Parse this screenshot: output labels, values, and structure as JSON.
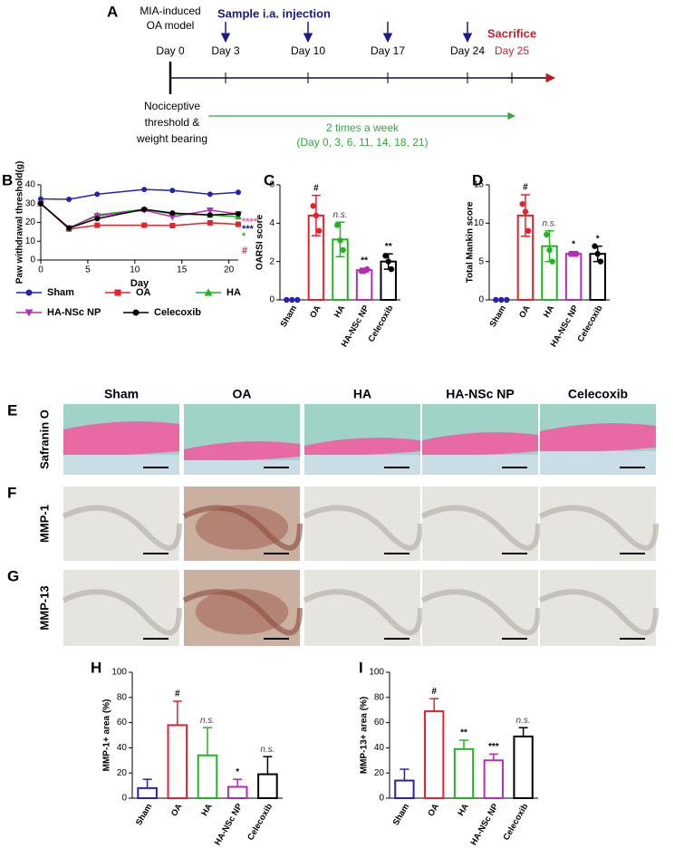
{
  "timeline": {
    "panel": "A",
    "model": [
      "MIA-induced",
      "OA model"
    ],
    "injection": "Sample i.a. injection",
    "days": [
      "Day 0",
      "Day 3",
      "Day 10",
      "Day 17",
      "Day 24"
    ],
    "sacrifice": "Sacrifice",
    "sacrifice_day": "Day 25",
    "measure": [
      "Nociceptive",
      "threshold &",
      "weight bearing"
    ],
    "frequency": "2 times a week",
    "schedule": "(Day 0, 3, 6, 11, 14, 18, 21)"
  },
  "chart_data": [
    {
      "type": "line",
      "panel": "B",
      "x_label": "Day",
      "y_label": "Paw withdrawal threshold(g)",
      "x": [
        0,
        3,
        6,
        11,
        14,
        18,
        21
      ],
      "xlim": [
        0,
        21
      ],
      "xticks": [
        0,
        5,
        10,
        15,
        20
      ],
      "ylim": [
        0,
        40
      ],
      "yticks": [
        0,
        10,
        20,
        30,
        40
      ],
      "series": [
        {
          "name": "Sham",
          "color": "#2424b0",
          "marker": "circle",
          "values": [
            32.5,
            32.3,
            35,
            37.5,
            37,
            35,
            36
          ]
        },
        {
          "name": "OA",
          "color": "#e8202a",
          "marker": "square",
          "values": [
            30,
            16.5,
            18.5,
            18.5,
            18.3,
            19.8,
            19
          ]
        },
        {
          "name": "HA",
          "color": "#22b422",
          "marker": "triangle-up",
          "values": [
            30,
            17,
            24,
            27,
            24.5,
            24,
            23
          ]
        },
        {
          "name": "HA-NSc NP",
          "color": "#b42db4",
          "marker": "triangle-down",
          "values": [
            30,
            17,
            23.5,
            26.5,
            23,
            26.5,
            24.5
          ]
        },
        {
          "name": "Celecoxib",
          "color": "#000000",
          "marker": "circle",
          "values": [
            30,
            17,
            22,
            27,
            25,
            24,
            24.5
          ]
        }
      ],
      "annotations": [
        "****",
        "***",
        "*",
        "#"
      ],
      "annotation_colors": [
        "#e0609a",
        "#1a1a66",
        "#22b422",
        "#e8202a"
      ]
    },
    {
      "type": "bar",
      "panel": "C",
      "y_label": "OARSI score",
      "categories": [
        "Sham",
        "OA",
        "HA",
        "HA-NSc NP",
        "Celecoxib"
      ],
      "colors": [
        "#2424b0",
        "#e8202a",
        "#22b422",
        "#b42db4",
        "#000000"
      ],
      "values": [
        0,
        4.4,
        3.15,
        1.55,
        2.0
      ],
      "errors": [
        0,
        1.05,
        0.9,
        0.1,
        0.4
      ],
      "error_bars": "both",
      "points": [
        [
          0,
          0,
          0
        ],
        [
          4.9,
          4.4,
          3.6
        ],
        [
          3.9,
          3.1,
          2.6
        ],
        [
          1.5,
          1.5,
          1.6
        ],
        [
          2.3,
          2.0,
          1.6
        ]
      ],
      "annotations": [
        null,
        "#",
        "n.s.",
        "**",
        "**"
      ],
      "ylim": [
        0,
        6
      ],
      "yticks": [
        0,
        2,
        4,
        6
      ]
    },
    {
      "type": "bar",
      "panel": "D",
      "y_label": "Total Mankin score",
      "categories": [
        "Sham",
        "OA",
        "HA",
        "HA-NSc NP",
        "Celecoxib"
      ],
      "colors": [
        "#2424b0",
        "#e8202a",
        "#22b422",
        "#b42db4",
        "#000000"
      ],
      "values": [
        0,
        11,
        7,
        6,
        6
      ],
      "errors": [
        0,
        2.7,
        2,
        0.3,
        1
      ],
      "error_bars": "both",
      "points": [
        [
          0,
          0,
          0
        ],
        [
          12.5,
          11.5,
          9
        ],
        [
          8.5,
          6.5,
          5
        ],
        [
          6,
          6,
          6
        ],
        [
          7,
          6,
          5
        ]
      ],
      "annotations": [
        null,
        "#",
        "n.s.",
        "*",
        "*"
      ],
      "ylim": [
        0,
        15
      ],
      "yticks": [
        0,
        5,
        10,
        15
      ]
    },
    {
      "type": "bar",
      "panel": "H",
      "y_label": "MMP-1+ area (%)",
      "categories": [
        "Sham",
        "OA",
        "HA",
        "HA-NSc NP",
        "Celecoxib"
      ],
      "colors": [
        "#2424b0",
        "#e8202a",
        "#22b422",
        "#b42db4",
        "#000000"
      ],
      "values": [
        8,
        58,
        34,
        9,
        19
      ],
      "errors": [
        7,
        19,
        22,
        6,
        14
      ],
      "error_bars": "upper",
      "annotations": [
        null,
        "#",
        "n.s.",
        "*",
        "n.s."
      ],
      "ylim": [
        0,
        100
      ],
      "yticks": [
        0,
        20,
        40,
        60,
        80,
        100
      ]
    },
    {
      "type": "bar",
      "panel": "I",
      "y_label": "MMP-13+ area (%)",
      "categories": [
        "Sham",
        "OA",
        "HA",
        "HA-NSc NP",
        "Celecoxib"
      ],
      "colors": [
        "#2424b0",
        "#e8202a",
        "#22b422",
        "#b42db4",
        "#000000"
      ],
      "values": [
        14,
        69,
        39,
        30,
        49
      ],
      "errors": [
        9,
        10,
        7,
        5,
        7
      ],
      "error_bars": "upper",
      "annotations": [
        null,
        "#",
        "**",
        "***",
        "n.s."
      ],
      "ylim": [
        0,
        100
      ],
      "yticks": [
        0,
        20,
        40,
        60,
        80,
        100
      ]
    }
  ],
  "histology": {
    "columns": [
      "Sham",
      "OA",
      "HA",
      "HA-NSc NP",
      "Celecoxib"
    ],
    "rows": [
      {
        "panel": "E",
        "label": "Safranin O"
      },
      {
        "panel": "F",
        "label": "MMP-1"
      },
      {
        "panel": "G",
        "label": "MMP-13"
      }
    ]
  }
}
